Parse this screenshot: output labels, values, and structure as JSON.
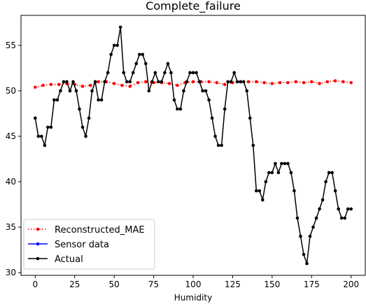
{
  "chart_data": {
    "type": "line",
    "title": "Complete_failure",
    "xlabel": "Humidity",
    "ylabel": "",
    "xlim": [
      -9,
      209
    ],
    "ylim": [
      29.7,
      58.3
    ],
    "xticks": [
      0,
      25,
      50,
      75,
      100,
      125,
      150,
      175,
      200
    ],
    "yticks": [
      30,
      35,
      40,
      45,
      50,
      55
    ],
    "grid": false,
    "legend_position": "lower-left",
    "series": [
      {
        "name": "Reconstructed_MAE",
        "color": "#ff0000",
        "line_style": "dotted",
        "x": [
          0,
          5,
          10,
          15,
          20,
          25,
          30,
          35,
          40,
          45,
          50,
          55,
          60,
          65,
          70,
          75,
          80,
          85,
          90,
          95,
          100,
          105,
          110,
          115,
          120,
          125,
          130,
          135,
          140,
          145,
          150,
          155,
          160,
          165,
          170,
          175,
          180,
          185,
          190,
          195,
          200
        ],
        "y": [
          50.4,
          50.6,
          50.7,
          50.7,
          50.8,
          50.7,
          50.5,
          50.6,
          51.0,
          51.0,
          50.8,
          50.6,
          50.5,
          50.9,
          51.0,
          50.9,
          50.9,
          50.8,
          50.6,
          50.9,
          51.0,
          51.0,
          51.0,
          50.9,
          50.7,
          50.9,
          51.0,
          51.0,
          51.0,
          50.9,
          50.8,
          50.9,
          50.9,
          51.0,
          50.9,
          51.0,
          50.8,
          51.0,
          51.1,
          51.0,
          50.9
        ]
      },
      {
        "name": "Sensor data",
        "color": "#0000ff",
        "line_style": "solid",
        "x": [],
        "y": []
      },
      {
        "name": "Actual",
        "color": "#000000",
        "line_style": "solid",
        "x": [
          0,
          2,
          4,
          6,
          8,
          10,
          12,
          14,
          16,
          18,
          20,
          22,
          24,
          26,
          28,
          30,
          32,
          34,
          36,
          38,
          40,
          42,
          44,
          46,
          48,
          50,
          52,
          54,
          56,
          58,
          60,
          62,
          64,
          66,
          68,
          70,
          72,
          74,
          76,
          78,
          80,
          82,
          84,
          86,
          88,
          90,
          92,
          94,
          96,
          98,
          100,
          102,
          104,
          106,
          108,
          110,
          112,
          114,
          116,
          118,
          120,
          122,
          124,
          126,
          128,
          130,
          132,
          134,
          136,
          138,
          140,
          142,
          144,
          146,
          148,
          150,
          152,
          154,
          156,
          158,
          160,
          162,
          164,
          166,
          168,
          170,
          172,
          174,
          176,
          178,
          180,
          182,
          184,
          186,
          188,
          190,
          192,
          194,
          196,
          198,
          200
        ],
        "y": [
          47,
          45,
          45,
          44,
          46,
          46,
          49,
          49,
          50,
          51,
          51,
          50,
          51,
          50,
          48,
          46,
          45,
          47,
          50,
          51,
          49,
          49,
          51,
          52,
          54,
          55,
          55,
          57,
          52,
          51,
          51,
          52,
          53,
          54,
          54,
          53,
          50,
          51,
          52,
          51,
          51,
          52,
          53,
          52,
          49,
          48,
          48,
          50,
          51,
          52,
          52,
          52,
          51,
          50,
          50,
          49,
          47,
          45,
          44,
          44,
          48,
          51,
          51,
          52,
          51,
          51,
          51,
          50,
          47,
          44,
          39,
          39,
          38,
          40,
          41,
          41,
          42,
          41,
          42,
          42,
          42,
          41,
          39,
          36,
          34,
          32,
          31,
          34,
          35,
          36,
          37,
          38,
          40,
          41,
          41,
          39,
          37,
          36,
          36,
          37,
          37
        ]
      }
    ]
  }
}
